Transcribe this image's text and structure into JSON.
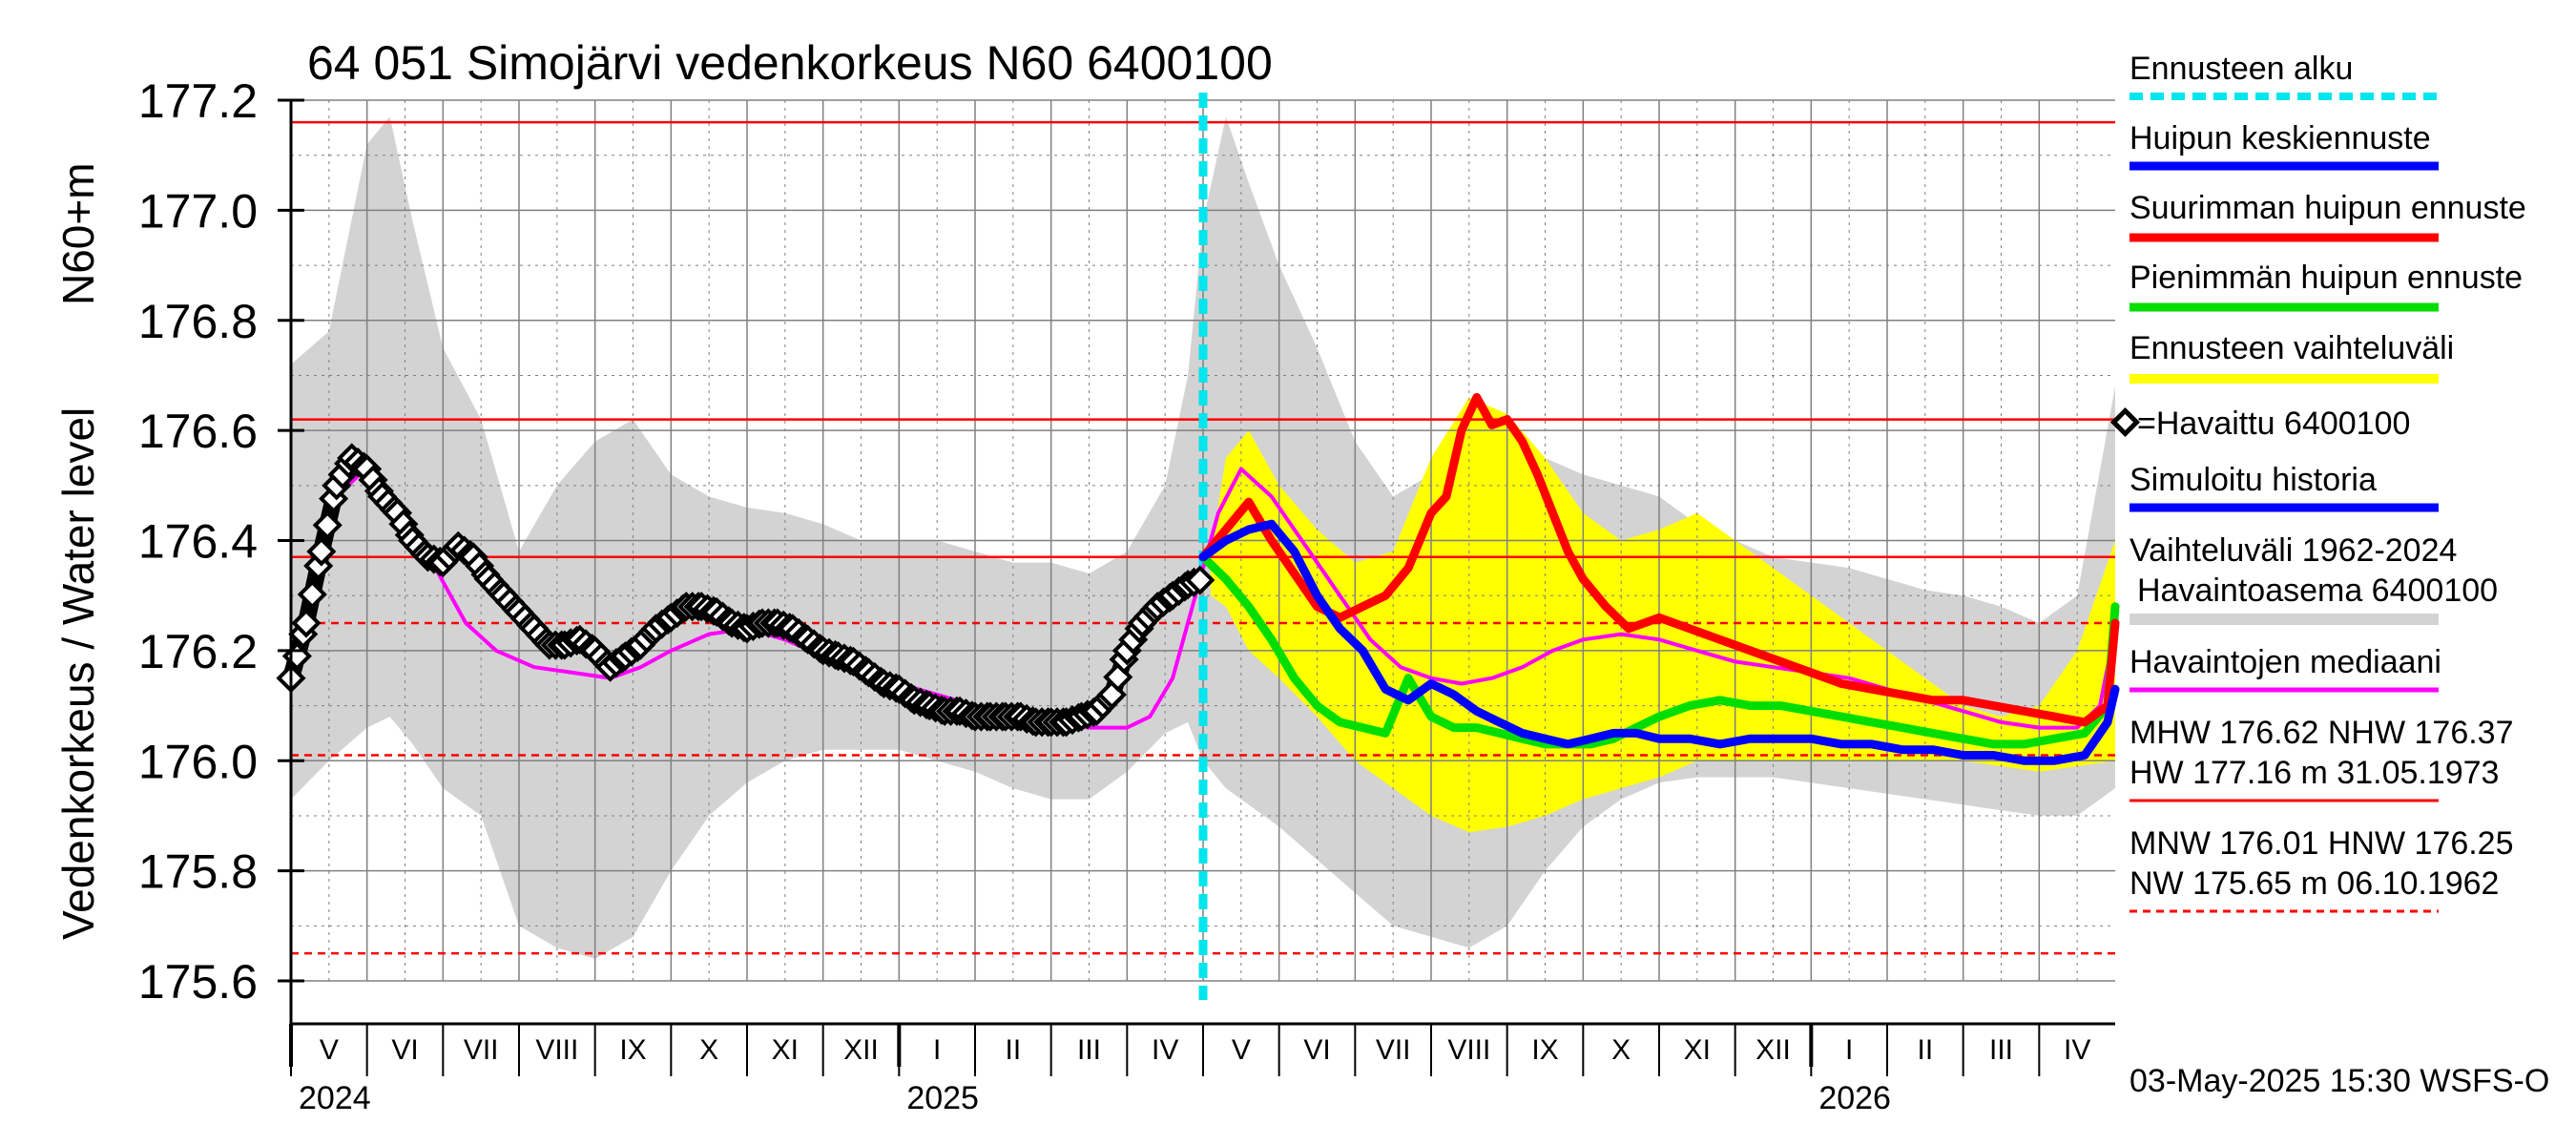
{
  "chart_data": {
    "type": "line",
    "title": "64 051 Simojärvi vedenkorkeus N60 6400100",
    "ylabel": "Vedenkorkeus / Water level",
    "ylabel_unit": "N60+m",
    "ylim": [
      175.6,
      177.2
    ],
    "yticks": [
      "175.6",
      "175.8",
      "176.0",
      "176.2",
      "176.4",
      "176.6",
      "176.8",
      "177.0",
      "177.2"
    ],
    "months": [
      "V",
      "VI",
      "VII",
      "VIII",
      "IX",
      "X",
      "XI",
      "XII",
      "I",
      "II",
      "III",
      "IV",
      "V",
      "VI",
      "VII",
      "VIII",
      "IX",
      "X",
      "XI",
      "XII",
      "I",
      "II",
      "III",
      "IV"
    ],
    "years": [
      {
        "label": "2024",
        "month": 0
      },
      {
        "label": "2025",
        "month": 8
      },
      {
        "label": "2026",
        "month": 20
      }
    ],
    "forecast_start_month": 12,
    "reference_lines": {
      "solid": [
        177.16,
        176.62,
        176.37
      ],
      "dashed": [
        176.25,
        176.01,
        175.65
      ]
    },
    "series": [
      {
        "name": "Vaihteluväli 1962-2024 Havaintoasema 6400100",
        "kind": "band",
        "color": "#d3d3d3",
        "x": [
          0,
          0.5,
          1,
          1.3,
          1.6,
          2,
          2.5,
          3,
          3.5,
          4,
          4.5,
          5,
          5.5,
          6,
          6.5,
          7,
          7.5,
          8,
          8.5,
          9,
          9.5,
          10,
          10.5,
          11,
          11.5,
          11.8,
          12,
          12.3,
          12.6,
          13,
          13.5,
          14,
          14.5,
          15,
          15.5,
          16,
          16.5,
          17,
          17.5,
          18,
          18.5,
          19,
          19.5,
          20,
          20.5,
          21,
          21.5,
          22,
          22.5,
          23,
          23.5,
          24
        ],
        "upper": [
          176.72,
          176.78,
          177.12,
          177.17,
          176.98,
          176.75,
          176.62,
          176.38,
          176.5,
          176.58,
          176.62,
          176.52,
          176.48,
          176.46,
          176.45,
          176.43,
          176.4,
          176.4,
          176.4,
          176.38,
          176.36,
          176.36,
          176.34,
          176.38,
          176.5,
          176.7,
          176.98,
          177.17,
          177.05,
          176.9,
          176.75,
          176.58,
          176.48,
          176.52,
          176.6,
          176.6,
          176.55,
          176.52,
          176.5,
          176.48,
          176.43,
          176.4,
          176.37,
          176.36,
          176.35,
          176.33,
          176.31,
          176.3,
          176.28,
          176.25,
          176.3,
          176.68
        ],
        "lower": [
          175.93,
          176.0,
          176.06,
          176.08,
          176.03,
          175.95,
          175.9,
          175.7,
          175.66,
          175.64,
          175.68,
          175.8,
          175.9,
          175.96,
          176.0,
          176.02,
          176.02,
          176.02,
          176.0,
          175.98,
          175.95,
          175.93,
          175.93,
          175.98,
          176.05,
          176.07,
          176.0,
          175.95,
          175.92,
          175.88,
          175.82,
          175.76,
          175.7,
          175.68,
          175.66,
          175.7,
          175.8,
          175.88,
          175.93,
          175.96,
          175.97,
          175.97,
          175.97,
          175.96,
          175.95,
          175.94,
          175.93,
          175.92,
          175.91,
          175.9,
          175.9,
          175.95
        ]
      },
      {
        "name": "Ennusteen vaihteluväli",
        "kind": "band",
        "color": "#ffff00",
        "x": [
          12.1,
          12.3,
          12.6,
          13,
          13.5,
          14,
          14.5,
          15,
          15.5,
          16,
          16.5,
          17,
          17.5,
          18,
          18.5,
          19,
          19.5,
          20,
          20.5,
          21,
          21.5,
          22,
          22.5,
          23,
          23.5,
          24
        ],
        "upper": [
          176.38,
          176.55,
          176.6,
          176.5,
          176.42,
          176.36,
          176.38,
          176.55,
          176.66,
          176.63,
          176.55,
          176.45,
          176.4,
          176.42,
          176.45,
          176.4,
          176.35,
          176.3,
          176.25,
          176.2,
          176.15,
          176.1,
          176.08,
          176.1,
          176.2,
          176.4
        ],
        "lower": [
          176.3,
          176.28,
          176.2,
          176.15,
          176.08,
          176.0,
          175.95,
          175.9,
          175.87,
          175.88,
          175.9,
          175.93,
          175.95,
          175.97,
          176.0,
          176.0,
          176.0,
          176.0,
          176.0,
          176.0,
          176.0,
          176.0,
          175.99,
          175.98,
          175.99,
          176.0
        ]
      },
      {
        "name": "Havaintojen mediaani",
        "kind": "line",
        "color": "#ff00ff",
        "x": [
          0,
          0.3,
          0.6,
          0.9,
          1.2,
          1.5,
          1.9,
          2.3,
          2.7,
          3.2,
          3.7,
          4.2,
          4.6,
          5,
          5.5,
          6,
          6.5,
          7,
          7.5,
          8,
          8.5,
          9,
          9.5,
          10,
          10.5,
          11,
          11.3,
          11.6,
          11.9,
          12.2,
          12.5,
          12.9,
          13.3,
          13.8,
          14.2,
          14.6,
          15,
          15.4,
          15.8,
          16.2,
          16.6,
          17,
          17.5,
          18,
          18.5,
          19,
          19.5,
          20,
          20.5,
          21,
          21.5,
          22,
          22.5,
          23,
          23.5,
          23.8,
          24
        ],
        "y": [
          176.15,
          176.35,
          176.48,
          176.52,
          176.5,
          176.43,
          176.35,
          176.25,
          176.2,
          176.17,
          176.16,
          176.15,
          176.17,
          176.2,
          176.23,
          176.24,
          176.22,
          176.19,
          176.16,
          176.14,
          176.12,
          176.1,
          176.08,
          176.07,
          176.06,
          176.06,
          176.08,
          176.15,
          176.3,
          176.45,
          176.53,
          176.48,
          176.4,
          176.3,
          176.22,
          176.17,
          176.15,
          176.14,
          176.15,
          176.17,
          176.2,
          176.22,
          176.23,
          176.22,
          176.2,
          176.18,
          176.17,
          176.16,
          176.15,
          176.13,
          176.11,
          176.09,
          176.07,
          176.06,
          176.06,
          176.1,
          176.24
        ]
      },
      {
        "name": "Havaittu 6400100",
        "kind": "observed",
        "color": "#000000",
        "x": [
          0,
          0.2,
          0.4,
          0.6,
          0.8,
          1,
          1.2,
          1.4,
          1.6,
          1.8,
          2,
          2.2,
          2.4,
          2.6,
          2.8,
          3,
          3.2,
          3.4,
          3.6,
          3.8,
          4,
          4.2,
          4.4,
          4.6,
          4.8,
          5,
          5.2,
          5.4,
          5.6,
          5.8,
          6,
          6.2,
          6.4,
          6.6,
          6.8,
          7,
          7.2,
          7.4,
          7.6,
          7.8,
          8,
          8.2,
          8.4,
          8.6,
          8.8,
          9,
          9.2,
          9.4,
          9.6,
          9.8,
          10,
          10.2,
          10.4,
          10.6,
          10.8,
          11,
          11.2,
          11.4,
          11.6,
          11.8,
          12
        ],
        "y": [
          176.15,
          176.25,
          176.38,
          176.5,
          176.55,
          176.53,
          176.48,
          176.45,
          176.4,
          176.37,
          176.36,
          176.39,
          176.37,
          176.33,
          176.3,
          176.27,
          176.24,
          176.21,
          176.21,
          176.22,
          176.2,
          176.17,
          176.19,
          176.21,
          176.24,
          176.26,
          176.28,
          176.28,
          176.27,
          176.25,
          176.24,
          176.25,
          176.25,
          176.24,
          176.22,
          176.2,
          176.19,
          176.18,
          176.16,
          176.14,
          176.13,
          176.11,
          176.1,
          176.09,
          176.09,
          176.08,
          176.08,
          176.08,
          176.08,
          176.07,
          176.07,
          176.07,
          176.08,
          176.09,
          176.12,
          176.2,
          176.25,
          176.28,
          176.3,
          176.32,
          176.33
        ]
      },
      {
        "name": "Suurimman huipun ennuste",
        "kind": "line",
        "color": "#ff0000",
        "x": [
          12,
          12.3,
          12.6,
          12.9,
          13.2,
          13.5,
          13.8,
          14.1,
          14.4,
          14.7,
          15,
          15.2,
          15.4,
          15.6,
          15.8,
          16,
          16.2,
          16.4,
          16.6,
          16.8,
          17,
          17.3,
          17.6,
          18,
          18.4,
          18.8,
          19.2,
          19.6,
          20,
          20.4,
          20.8,
          21.2,
          21.6,
          22,
          22.4,
          22.8,
          23.2,
          23.6,
          23.9,
          24
        ],
        "y": [
          176.37,
          176.42,
          176.47,
          176.4,
          176.34,
          176.28,
          176.26,
          176.28,
          176.3,
          176.35,
          176.45,
          176.48,
          176.6,
          176.66,
          176.61,
          176.62,
          176.58,
          176.52,
          176.45,
          176.38,
          176.33,
          176.28,
          176.24,
          176.26,
          176.24,
          176.22,
          176.2,
          176.18,
          176.16,
          176.14,
          176.13,
          176.12,
          176.11,
          176.11,
          176.1,
          176.09,
          176.08,
          176.07,
          176.1,
          176.25
        ]
      },
      {
        "name": "Pienimmän huipun ennuste",
        "kind": "line",
        "color": "#00dd00",
        "x": [
          12,
          12.3,
          12.6,
          12.9,
          13.2,
          13.5,
          13.8,
          14.1,
          14.4,
          14.7,
          15,
          15.3,
          15.6,
          15.9,
          16.2,
          16.5,
          16.8,
          17.1,
          17.4,
          17.7,
          18,
          18.4,
          18.8,
          19.2,
          19.6,
          20,
          20.4,
          20.8,
          21.2,
          21.6,
          22,
          22.4,
          22.8,
          23.2,
          23.6,
          23.9,
          24
        ],
        "y": [
          176.37,
          176.33,
          176.28,
          176.22,
          176.15,
          176.1,
          176.07,
          176.06,
          176.05,
          176.15,
          176.08,
          176.06,
          176.06,
          176.05,
          176.04,
          176.03,
          176.03,
          176.03,
          176.04,
          176.06,
          176.08,
          176.1,
          176.11,
          176.1,
          176.1,
          176.09,
          176.08,
          176.07,
          176.06,
          176.05,
          176.04,
          176.03,
          176.03,
          176.04,
          176.05,
          176.1,
          176.28
        ]
      },
      {
        "name": "Huipun keskiennuste",
        "kind": "line",
        "color": "#0000ff",
        "x": [
          12,
          12.3,
          12.6,
          12.9,
          13.2,
          13.5,
          13.8,
          14.1,
          14.4,
          14.7,
          15,
          15.3,
          15.6,
          15.9,
          16.2,
          16.5,
          16.8,
          17.1,
          17.4,
          17.7,
          18,
          18.4,
          18.8,
          19.2,
          19.6,
          20,
          20.4,
          20.8,
          21.2,
          21.6,
          22,
          22.4,
          22.8,
          23.2,
          23.6,
          23.9,
          24
        ],
        "y": [
          176.37,
          176.4,
          176.42,
          176.43,
          176.38,
          176.3,
          176.24,
          176.2,
          176.13,
          176.11,
          176.14,
          176.12,
          176.09,
          176.07,
          176.05,
          176.04,
          176.03,
          176.04,
          176.05,
          176.05,
          176.04,
          176.04,
          176.03,
          176.04,
          176.04,
          176.04,
          176.03,
          176.03,
          176.02,
          176.02,
          176.01,
          176.01,
          176.0,
          176.0,
          176.01,
          176.07,
          176.13
        ]
      }
    ]
  },
  "legend": {
    "forecast_start": "Ennusteen alku",
    "mean_peak": "Huipun keskiennuste",
    "max_peak": "Suurimman huipun ennuste",
    "min_peak": "Pienimmän huipun ennuste",
    "forecast_range": "Ennusteen vaihteluväli",
    "observed": "=Havaittu 6400100",
    "simulated": "Simuloitu historia",
    "range_line1": "Vaihteluväli 1962-2024",
    "range_line2": "Havaintoasema 6400100",
    "median": "Havaintojen mediaani",
    "stats1_line1": "MHW 176.62 NHW 176.37",
    "stats1_line2": "HW 177.16 m 31.05.1973",
    "stats2_line1": "MNW 176.01 HNW 176.25",
    "stats2_line2": "NW 175.65 m 06.10.1962"
  },
  "footer": "03-May-2025 15:30 WSFS-O",
  "colors": {
    "grid": "#808080",
    "ref_line": "#ff0000",
    "forecast_start": "#00e5ee",
    "band": "#d3d3d3",
    "forecast_band": "#ffff00",
    "median": "#ff00ff",
    "max_peak": "#ff0000",
    "min_peak": "#00dd00",
    "mean_peak": "#0000ff",
    "simulated": "#0000ff"
  }
}
